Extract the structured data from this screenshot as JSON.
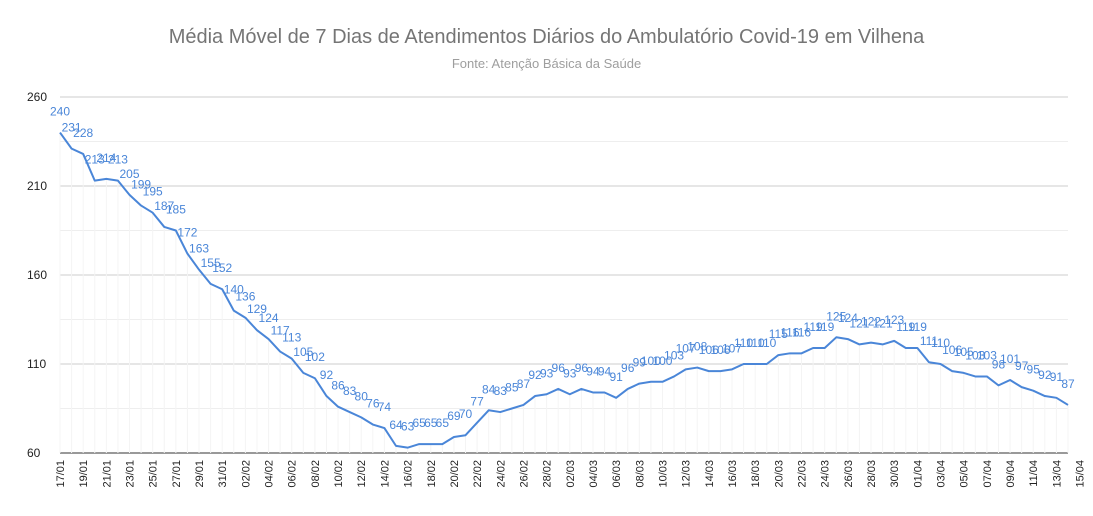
{
  "chart_data": {
    "type": "line",
    "title": "Média Móvel de 7 Dias de Atendimentos Diários do Ambulatório Covid-19 em Vilhena",
    "subtitle": "Fonte: Atenção Básica da Saúde",
    "xlabel": "",
    "ylabel": "",
    "ylim": [
      60,
      260
    ],
    "yticks": [
      60,
      110,
      160,
      210,
      260
    ],
    "grid": true,
    "legend": "none",
    "line_color": "#4a86d8",
    "x_tick_labels": [
      "17/01",
      "19/01",
      "21/01",
      "23/01",
      "25/01",
      "27/01",
      "29/01",
      "31/01",
      "02/02",
      "04/02",
      "06/02",
      "08/02",
      "10/02",
      "12/02",
      "14/02",
      "16/02",
      "18/02",
      "20/02",
      "22/02",
      "24/02",
      "26/02",
      "28/02",
      "02/03",
      "04/03",
      "06/03",
      "08/03",
      "10/03",
      "12/03",
      "14/03",
      "16/03",
      "18/03",
      "20/03",
      "22/03",
      "24/03",
      "26/03",
      "28/03",
      "30/03",
      "01/04",
      "03/04",
      "05/04",
      "07/04",
      "09/04",
      "11/04",
      "13/04",
      "15/04"
    ],
    "series": [
      {
        "name": "",
        "values": [
          240,
          231,
          228,
          213,
          214,
          213,
          205,
          199,
          195,
          187,
          185,
          172,
          163,
          155,
          152,
          140,
          136,
          129,
          124,
          117,
          113,
          105,
          102,
          92,
          86,
          83,
          80,
          76,
          74,
          64,
          63,
          65,
          65,
          65,
          69,
          70,
          77,
          84,
          83,
          85,
          87,
          92,
          93,
          96,
          93,
          96,
          94,
          94,
          91,
          96,
          99,
          100,
          100,
          103,
          107,
          108,
          106,
          106,
          107,
          110,
          110,
          110,
          115,
          116,
          116,
          119,
          119,
          125,
          124,
          121,
          122,
          121,
          123,
          119,
          119,
          111,
          110,
          106,
          105,
          103,
          103,
          98,
          101,
          97,
          95,
          92,
          91,
          87
        ]
      }
    ]
  }
}
